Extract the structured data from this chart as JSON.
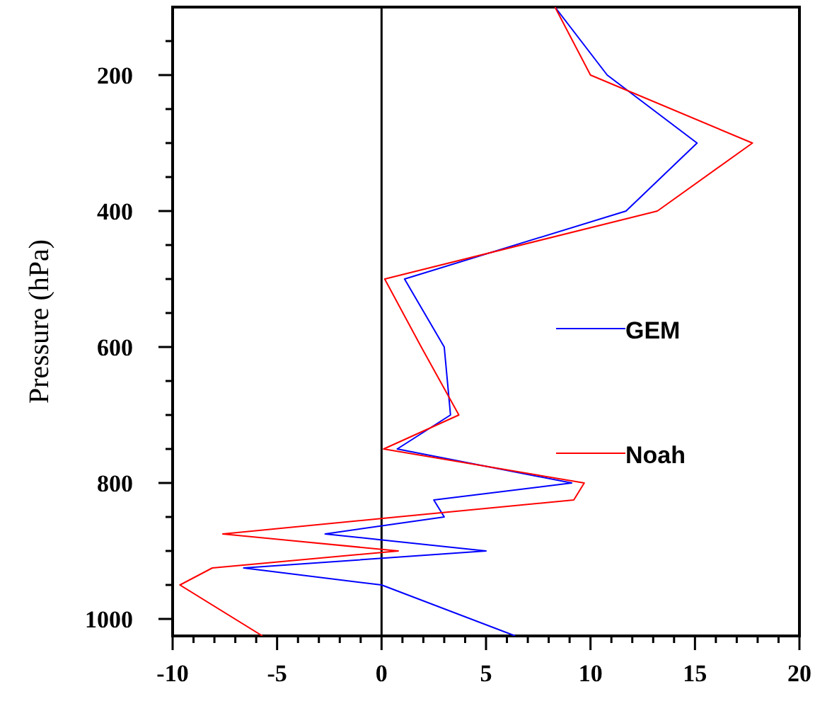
{
  "chart_data": {
    "type": "line",
    "ylabel": "Pressure (hPa)",
    "xlim": [
      -10,
      20
    ],
    "ylim": [
      1025,
      100
    ],
    "xticks": [
      -10,
      {
        "value": -9,
        "label": null
      },
      {
        "value": -8,
        "label": null
      },
      {
        "value": -7,
        "label": null
      },
      {
        "value": -6,
        "label": null
      },
      -5,
      {
        "value": -4,
        "label": null
      },
      {
        "value": -3,
        "label": null
      },
      {
        "value": -2,
        "label": null
      },
      {
        "value": -1,
        "label": null
      },
      0,
      {
        "value": 1,
        "label": null
      },
      {
        "value": 2,
        "label": null
      },
      {
        "value": 3,
        "label": null
      },
      {
        "value": 4,
        "label": null
      },
      5,
      {
        "value": 6,
        "label": null
      },
      {
        "value": 7,
        "label": null
      },
      {
        "value": 8,
        "label": null
      },
      {
        "value": 9,
        "label": null
      },
      10,
      {
        "value": 11,
        "label": null
      },
      {
        "value": 12,
        "label": null
      },
      {
        "value": 13,
        "label": null
      },
      {
        "value": 14,
        "label": null
      },
      15,
      {
        "value": 16,
        "label": null
      },
      {
        "value": 17,
        "label": null
      },
      {
        "value": 18,
        "label": null
      },
      {
        "value": 19,
        "label": null
      },
      20
    ],
    "yticks": [
      {
        "value": 150,
        "label": null
      },
      200,
      {
        "value": 250,
        "label": null
      },
      {
        "value": 300,
        "label": null
      },
      {
        "value": 350,
        "label": null
      },
      400,
      {
        "value": 450,
        "label": null
      },
      {
        "value": 500,
        "label": null
      },
      {
        "value": 550,
        "label": null
      },
      600,
      {
        "value": 650,
        "label": null
      },
      {
        "value": 700,
        "label": null
      },
      {
        "value": 750,
        "label": null
      },
      800,
      {
        "value": 850,
        "label": null
      },
      {
        "value": 900,
        "label": null
      },
      {
        "value": 950,
        "label": null
      },
      1000
    ],
    "legend": "right",
    "grid": false,
    "ref_lines": [
      {
        "axis": "x",
        "value": 0,
        "color": "#000000"
      }
    ],
    "series": [
      {
        "name": "GEM",
        "color": "#0000ff",
        "x": [
          8.3,
          10.8,
          15.1,
          11.7,
          1.1,
          3.0,
          3.3,
          0.75,
          9.1,
          2.5,
          3.0,
          -2.7,
          5.0,
          -6.6,
          0,
          6.4
        ],
        "values": [
          100,
          200,
          300,
          400,
          500,
          600,
          700,
          750,
          800,
          825,
          850,
          875,
          900,
          925,
          950,
          1025
        ]
      },
      {
        "name": "Noah",
        "color": "#ff0000",
        "x": [
          8.3,
          10.0,
          17.75,
          13.2,
          0.15,
          1.9,
          3.7,
          0.1,
          9.7,
          9.2,
          0.75,
          -7.6,
          0.8,
          -8.1,
          -9.65,
          -5.7
        ],
        "values": [
          100,
          200,
          300,
          400,
          500,
          600,
          700,
          750,
          800,
          825,
          850,
          875,
          900,
          925,
          950,
          1025
        ]
      }
    ]
  }
}
